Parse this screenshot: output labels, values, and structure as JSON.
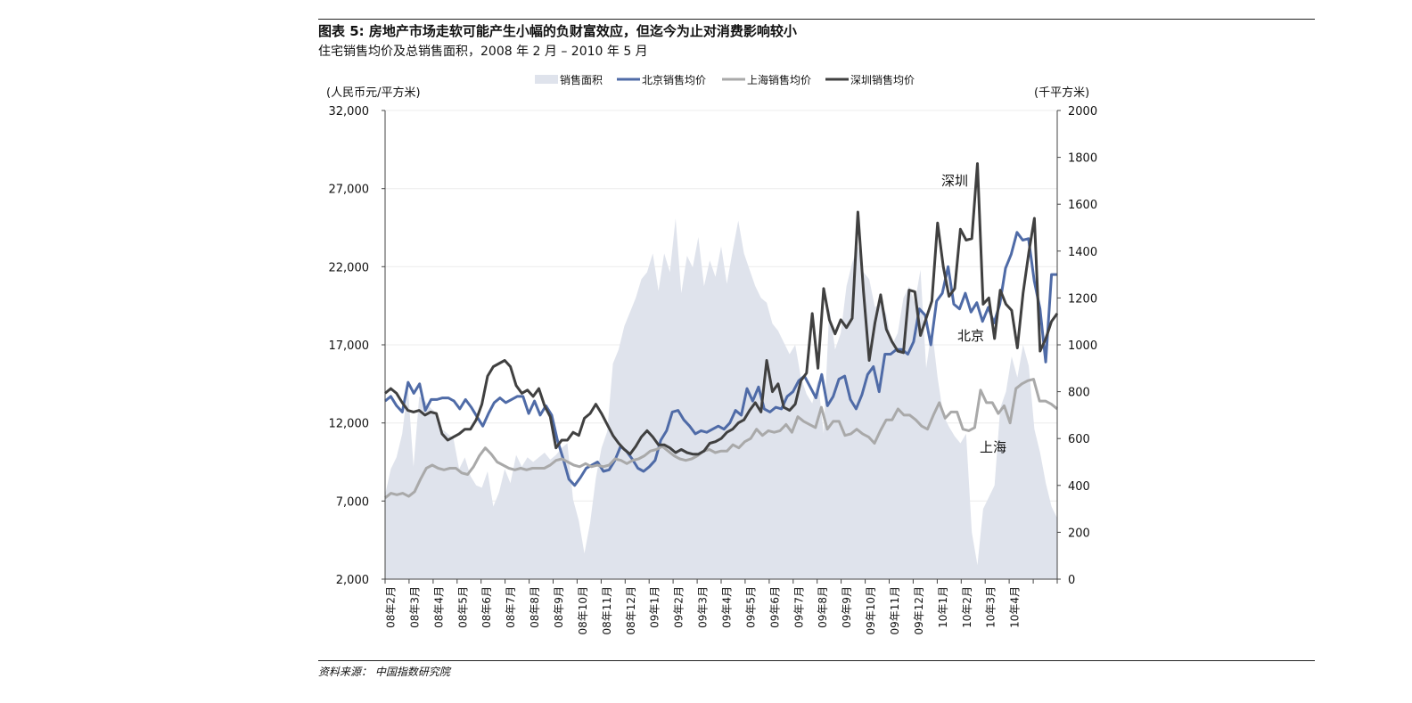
{
  "figure": {
    "title": "图表 5: 房地产市场走软可能产生小幅的负财富效应，但迄今为止对消费影响较小",
    "subtitle": "住宅销售均价及总销售面积，2008 年 2 月 – 2010 年 5 月",
    "source": "资料来源：   中国指数研究院"
  },
  "chart_data": {
    "type": "line",
    "title": "",
    "y_left_unit": "(人民币元/平方米)",
    "y_right_unit": "(千平方米)",
    "ylim_left": [
      2000,
      32000
    ],
    "ylim_right": [
      0,
      2000
    ],
    "left_ticks": [
      "32,000",
      "27,000",
      "22,000",
      "17,000",
      "12,000",
      "7,000",
      "2,000"
    ],
    "left_tick_values": [
      32000,
      27000,
      22000,
      17000,
      12000,
      7000,
      2000
    ],
    "right_ticks": [
      "2000",
      "1800",
      "1600",
      "1400",
      "1200",
      "1000",
      "800",
      "600",
      "400",
      "200",
      "0"
    ],
    "right_tick_values": [
      2000,
      1800,
      1600,
      1400,
      1200,
      1000,
      800,
      600,
      400,
      200,
      0
    ],
    "x_labels": [
      "08年2月",
      "08年3月",
      "08年4月",
      "08年5月",
      "08年6月",
      "08年7月",
      "08年8月",
      "08年9月",
      "08年10月",
      "08年11月",
      "08年12月",
      "09年1月",
      "09年2月",
      "09年3月",
      "09年4月",
      "09年5月",
      "09年6月",
      "09年7月",
      "09年8月",
      "09年9月",
      "09年10月",
      "09年11月",
      "09年12月",
      "10年1月",
      "10年2月",
      "10年3月",
      "10年4月"
    ],
    "months_span": 28,
    "legend_position": "top",
    "grid": true,
    "series": [
      {
        "name": "销售面积",
        "type": "area",
        "axis": "right",
        "color": "#dfe3ec",
        "values": [
          360,
          470,
          520,
          620,
          820,
          480,
          780,
          760,
          730,
          710,
          640,
          620,
          600,
          470,
          520,
          440,
          400,
          390,
          460,
          310,
          370,
          470,
          410,
          530,
          480,
          520,
          500,
          520,
          540,
          510,
          530,
          560,
          580,
          340,
          250,
          110,
          240,
          430,
          560,
          630,
          920,
          980,
          1080,
          1140,
          1200,
          1280,
          1310,
          1390,
          1230,
          1390,
          1310,
          1540,
          1220,
          1380,
          1330,
          1460,
          1250,
          1360,
          1290,
          1420,
          1260,
          1400,
          1530,
          1390,
          1320,
          1250,
          1200,
          1180,
          1090,
          1060,
          1010,
          960,
          1000,
          860,
          790,
          750,
          850,
          620,
          1160,
          980,
          1050,
          1250,
          1350,
          1420,
          1310,
          1280,
          1160,
          1180,
          1130,
          1000,
          1050,
          1200,
          1250,
          1180,
          1320,
          900,
          1070,
          860,
          700,
          650,
          610,
          580,
          620,
          200,
          60,
          300,
          350,
          400,
          730,
          800,
          950,
          860,
          1000,
          910,
          640,
          540,
          410,
          310,
          260
        ]
      },
      {
        "name": "北京销售均价",
        "type": "line",
        "axis": "left",
        "color": "#4f6ba7",
        "values": [
          13400,
          13700,
          13100,
          12700,
          14600,
          13900,
          14500,
          12800,
          13500,
          13500,
          13600,
          13600,
          13400,
          12900,
          13500,
          13000,
          12400,
          11800,
          12600,
          13300,
          13600,
          13300,
          13500,
          13700,
          13700,
          12600,
          13400,
          12500,
          13100,
          12500,
          10900,
          9700,
          8400,
          8000,
          8500,
          9100,
          9300,
          9500,
          8900,
          9000,
          9600,
          10500,
          10200,
          9700,
          9100,
          8900,
          9200,
          9600,
          10900,
          11500,
          12700,
          12800,
          12200,
          11800,
          11300,
          11500,
          11400,
          11600,
          11800,
          11600,
          12000,
          12800,
          12500,
          14200,
          13400,
          14300,
          12900,
          12700,
          13000,
          12900,
          13700,
          14000,
          14700,
          15000,
          14300,
          13600,
          15100,
          13100,
          13700,
          14800,
          15000,
          13500,
          12900,
          13800,
          15100,
          15600,
          14000,
          16400,
          16400,
          16700,
          16700,
          16400,
          17200,
          19300,
          18900,
          17000,
          19800,
          20300,
          22000,
          19600,
          19300,
          20300,
          19100,
          19700,
          18500,
          19400,
          18400,
          19600,
          21900,
          22800,
          24200,
          23700,
          23800,
          21100,
          19300,
          15900,
          21500,
          21500
        ]
      },
      {
        "name": "上海销售均价",
        "type": "line",
        "axis": "left",
        "color": "#a9a9a9",
        "values": [
          7200,
          7500,
          7400,
          7500,
          7300,
          7600,
          8400,
          9100,
          9300,
          9100,
          9000,
          9100,
          9100,
          8800,
          8700,
          9200,
          9900,
          10400,
          10000,
          9500,
          9300,
          9100,
          9000,
          9100,
          9000,
          9100,
          9100,
          9100,
          9300,
          9600,
          9700,
          9500,
          9300,
          9200,
          9400,
          9200,
          9300,
          9200,
          9300,
          9700,
          9600,
          9400,
          9600,
          9700,
          9900,
          10200,
          10300,
          10500,
          10200,
          9900,
          9700,
          9600,
          9700,
          9900,
          10200,
          10300,
          10100,
          10200,
          10200,
          10600,
          10400,
          10800,
          11000,
          11600,
          11200,
          11500,
          11400,
          11500,
          11900,
          11400,
          12400,
          12100,
          11900,
          11700,
          13000,
          11600,
          12100,
          12100,
          11200,
          11300,
          11600,
          11300,
          11100,
          10700,
          11500,
          12200,
          12200,
          12900,
          12500,
          12500,
          12200,
          11800,
          11600,
          12500,
          13300,
          12300,
          12700,
          12700,
          11600,
          11500,
          11700,
          14100,
          13300,
          13300,
          12600,
          13100,
          12000,
          14200,
          14500,
          14700,
          14800,
          13400,
          13400,
          13200,
          12900
        ]
      },
      {
        "name": "深圳销售均价",
        "type": "line",
        "axis": "left",
        "color": "#404040",
        "values": [
          13900,
          14200,
          13900,
          13300,
          12800,
          12700,
          12800,
          12500,
          12700,
          12600,
          11300,
          10900,
          11100,
          11300,
          11600,
          11600,
          12200,
          13200,
          15000,
          15600,
          15800,
          16000,
          15600,
          14400,
          13900,
          14100,
          13700,
          14200,
          13100,
          12400,
          10400,
          10900,
          10900,
          11400,
          11200,
          12300,
          12600,
          13200,
          12600,
          11900,
          11200,
          10700,
          10300,
          10000,
          10500,
          11100,
          11500,
          11100,
          10600,
          10600,
          10400,
          10100,
          10300,
          10100,
          10000,
          10000,
          10200,
          10700,
          10800,
          11000,
          11400,
          11600,
          12000,
          12200,
          12800,
          13300,
          12700,
          16000,
          14000,
          14500,
          13000,
          12800,
          13200,
          14700,
          15200,
          19000,
          15500,
          20600,
          18600,
          17700,
          18600,
          18100,
          18700,
          25500,
          20400,
          16000,
          18400,
          20200,
          18000,
          17200,
          16600,
          16500,
          20500,
          20400,
          17600,
          18700,
          19800,
          24800,
          22000,
          20100,
          20600,
          24400,
          23700,
          23800,
          28600,
          19600,
          20000,
          17400,
          20500,
          19600,
          19200,
          16800,
          20300,
          22900,
          25100,
          16600,
          17400,
          18500,
          19000
        ]
      }
    ],
    "annotations": [
      {
        "text": "深圳",
        "series": "深圳销售均价"
      },
      {
        "text": "北京",
        "series": "北京销售均价"
      },
      {
        "text": "上海",
        "series": "上海销售均价"
      }
    ]
  }
}
